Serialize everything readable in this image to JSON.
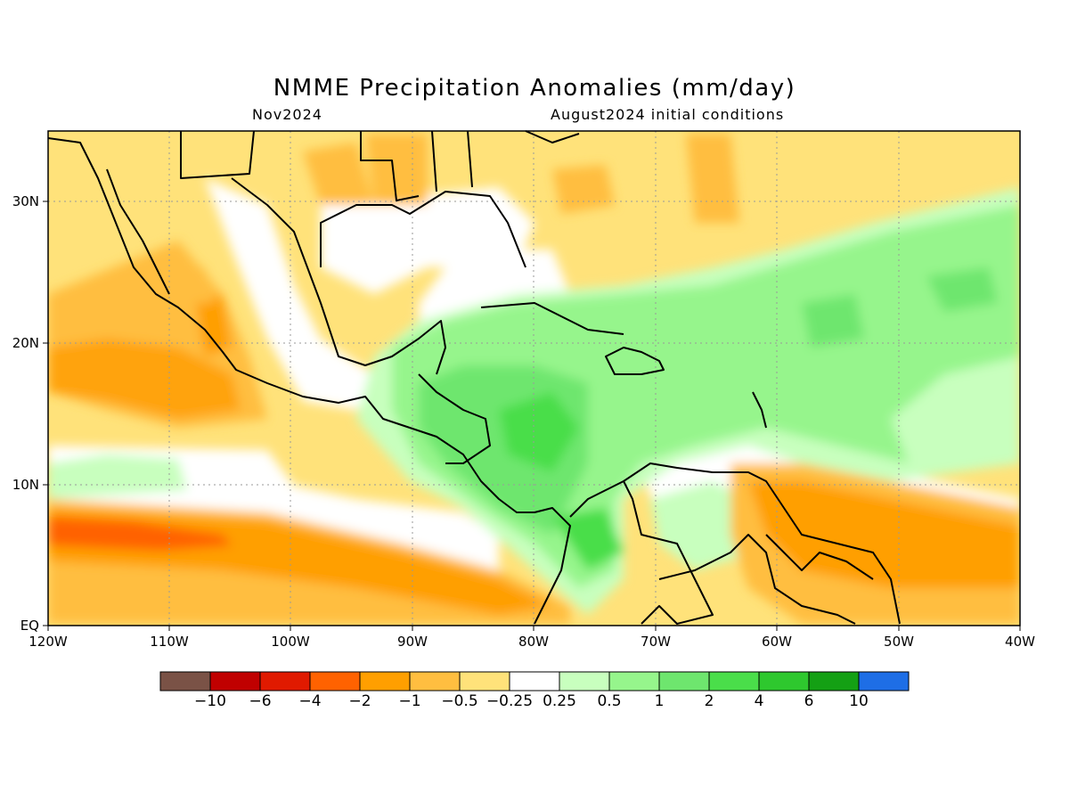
{
  "title": "NMME Precipitation Anomalies (mm/day)",
  "valid_month": "Nov2024",
  "initial_conditions": "August2024 initial conditions",
  "map": {
    "lon_ticks": [
      "120W",
      "110W",
      "100W",
      "90W",
      "80W",
      "70W",
      "60W",
      "50W",
      "40W"
    ],
    "lat_ticks": [
      "EQ",
      "10N",
      "20N",
      "30N"
    ],
    "lon_range": [
      -120,
      -40
    ],
    "lat_range": [
      0,
      35
    ]
  },
  "colorbar": {
    "colors": [
      "#7a5246",
      "#c00000",
      "#e01a00",
      "#ff6200",
      "#ff9f00",
      "#ffbe40",
      "#ffe27a",
      "#ffffff",
      "#c8ffbe",
      "#96f58c",
      "#6ee66e",
      "#4ade4a",
      "#2ec82e",
      "#14a014",
      "#1e6ee6"
    ],
    "labels": [
      "−10",
      "−6",
      "−4",
      "−2",
      "−1",
      "−0.5",
      "−0.25",
      "0.25",
      "0.5",
      "1",
      "2",
      "4",
      "6",
      "10"
    ]
  }
}
